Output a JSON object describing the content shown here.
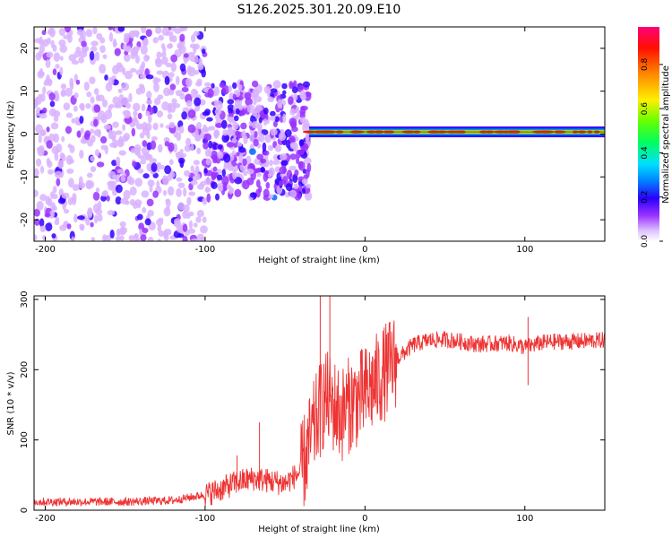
{
  "figure_title": "S126.2025.301.20.09.E10",
  "colors": {
    "snr_line": "#ee3333",
    "colormap": [
      "#ffffff",
      "#d9b3ff",
      "#9933ff",
      "#3300ff",
      "#0066ff",
      "#00ccff",
      "#00ff66",
      "#66ff00",
      "#ffee00",
      "#ff8800",
      "#ff1100",
      "#ff0077"
    ]
  },
  "chart_data": [
    {
      "type": "heatmap",
      "name": "spectrogram",
      "xlabel": "Height of straight line (km)",
      "ylabel": "Frequency (Hz)",
      "xlim": [
        -207,
        150
      ],
      "ylim": [
        -25,
        25
      ],
      "x_ticks": [
        {
          "value": -200,
          "label": "-200"
        },
        {
          "value": -100,
          "label": "-100"
        },
        {
          "value": 0,
          "label": "0"
        },
        {
          "value": 100,
          "label": "100"
        }
      ],
      "y_ticks": [
        {
          "value": -20,
          "label": "-20"
        },
        {
          "value": -10,
          "label": "-10"
        },
        {
          "value": 0,
          "label": "0"
        },
        {
          "value": 10,
          "label": "10"
        },
        {
          "value": 20,
          "label": "20"
        }
      ],
      "features": [
        {
          "x_range": [
            -207,
            -100
          ],
          "freq_range": [
            -25,
            25
          ],
          "amplitude": 0.15,
          "note": "scattered noise"
        },
        {
          "x_range": [
            -100,
            -35
          ],
          "freq_range": [
            -15,
            12
          ],
          "amplitude": 0.2,
          "note": "noise blobs"
        },
        {
          "x_range": [
            -35,
            150
          ],
          "freq_center": 0.5,
          "amplitude": 0.9,
          "note": "narrow carrier line"
        }
      ],
      "colorbar": {
        "label": "Normalized spectral amplitude",
        "range": [
          0,
          0.97
        ],
        "ticks": [
          {
            "value": 0.0,
            "label": "0.0"
          },
          {
            "value": 0.2,
            "label": "0.2"
          },
          {
            "value": 0.4,
            "label": "0.4"
          },
          {
            "value": 0.6,
            "label": "0.6"
          },
          {
            "value": 0.8,
            "label": "0.8"
          }
        ]
      }
    },
    {
      "type": "line",
      "name": "snr",
      "xlabel": "Height of straight line (km)",
      "ylabel": "SNR (10 * v/v)",
      "xlim": [
        -207,
        150
      ],
      "ylim": [
        0,
        305
      ],
      "x_ticks": [
        {
          "value": -200,
          "label": "-200"
        },
        {
          "value": -100,
          "label": "-100"
        },
        {
          "value": 0,
          "label": "0"
        },
        {
          "value": 100,
          "label": "100"
        }
      ],
      "y_ticks": [
        {
          "value": 0,
          "label": "0"
        },
        {
          "value": 100,
          "label": "100"
        },
        {
          "value": 200,
          "label": "200"
        },
        {
          "value": 300,
          "label": "300"
        }
      ],
      "series": [
        {
          "name": "SNR",
          "envelope_x": [
            -207,
            -150,
            -120,
            -100,
            -90,
            -80,
            -70,
            -60,
            -50,
            -40,
            -30,
            -25,
            -20,
            -15,
            -10,
            0,
            10,
            20,
            30,
            40,
            50,
            60,
            70,
            80,
            90,
            100,
            110,
            120,
            130,
            140,
            150
          ],
          "envelope_y": [
            12,
            12,
            14,
            22,
            30,
            40,
            45,
            42,
            38,
            55,
            130,
            160,
            150,
            135,
            150,
            165,
            190,
            215,
            235,
            242,
            243,
            240,
            236,
            237,
            238,
            232,
            238,
            240,
            240,
            241,
            242
          ],
          "spikes": [
            {
              "x": -80,
              "y": 78
            },
            {
              "x": -66,
              "y": 125
            },
            {
              "x": -28,
              "y": 305
            },
            {
              "x": -22,
              "y": 305
            },
            {
              "x": 102,
              "y": 275
            },
            {
              "x": 102,
              "y": 178
            }
          ]
        }
      ]
    }
  ]
}
